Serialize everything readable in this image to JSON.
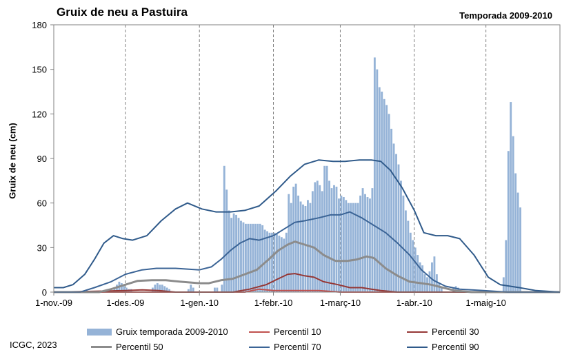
{
  "chart_data": {
    "type": "bar",
    "title": "Gruix de neu a Pastuira",
    "subtitle": "Temporada 2009-2010",
    "ylabel": "Gruix de neu (cm)",
    "ylim": [
      0,
      180
    ],
    "yticks": [
      0,
      30,
      60,
      90,
      120,
      150,
      180
    ],
    "xlim": [
      "2009-11-01",
      "2010-06-01"
    ],
    "xticks": [
      {
        "date": "2009-11-01",
        "label": "1-nov.-09"
      },
      {
        "date": "2009-12-01",
        "label": "1-des.-09"
      },
      {
        "date": "2010-01-01",
        "label": "1-gen.-10"
      },
      {
        "date": "2010-02-01",
        "label": "1-febr.-10"
      },
      {
        "date": "2010-03-01",
        "label": "1-març-10"
      },
      {
        "date": "2010-04-01",
        "label": "1-abr.-10"
      },
      {
        "date": "2010-05-01",
        "label": "1-maig-10"
      }
    ],
    "grid": "vertical-dashed",
    "legend_placement": "bottom",
    "colors": {
      "bars": "#95b3d7",
      "p10": "#c0504d",
      "p30": "#953735",
      "p50": "#8c8c8c",
      "p70": "#3b6496",
      "p90": "#2f5a8a"
    },
    "bars": {
      "name": "Gruix temporada 2009-2010",
      "points": [
        [
          "2009-11-26",
          3
        ],
        [
          "2009-11-27",
          5
        ],
        [
          "2009-11-28",
          7
        ],
        [
          "2009-11-29",
          6
        ],
        [
          "2009-11-30",
          4
        ],
        [
          "2009-12-01",
          3
        ],
        [
          "2009-12-02",
          2
        ],
        [
          "2009-12-03",
          2
        ],
        [
          "2009-12-12",
          3
        ],
        [
          "2009-12-13",
          5
        ],
        [
          "2009-12-14",
          6
        ],
        [
          "2009-12-15",
          5
        ],
        [
          "2009-12-16",
          5
        ],
        [
          "2009-12-17",
          4
        ],
        [
          "2009-12-18",
          3
        ],
        [
          "2009-12-19",
          2
        ],
        [
          "2009-12-27",
          2
        ],
        [
          "2009-12-28",
          5
        ],
        [
          "2009-12-29",
          3
        ],
        [
          "2010-01-07",
          3
        ],
        [
          "2010-01-08",
          3
        ],
        [
          "2010-01-10",
          5
        ],
        [
          "2010-01-11",
          85
        ],
        [
          "2010-01-12",
          69
        ],
        [
          "2010-01-13",
          55
        ],
        [
          "2010-01-14",
          50
        ],
        [
          "2010-01-15",
          53
        ],
        [
          "2010-01-16",
          52
        ],
        [
          "2010-01-17",
          50
        ],
        [
          "2010-01-18",
          48
        ],
        [
          "2010-01-19",
          47
        ],
        [
          "2010-01-20",
          46
        ],
        [
          "2010-01-21",
          46
        ],
        [
          "2010-01-22",
          46
        ],
        [
          "2010-01-23",
          46
        ],
        [
          "2010-01-24",
          46
        ],
        [
          "2010-01-25",
          46
        ],
        [
          "2010-01-26",
          46
        ],
        [
          "2010-01-27",
          45
        ],
        [
          "2010-01-28",
          42
        ],
        [
          "2010-01-29",
          41
        ],
        [
          "2010-01-30",
          40
        ],
        [
          "2010-01-31",
          40
        ],
        [
          "2010-02-01",
          40
        ],
        [
          "2010-02-02",
          39
        ],
        [
          "2010-02-03",
          38
        ],
        [
          "2010-02-04",
          37
        ],
        [
          "2010-02-05",
          36
        ],
        [
          "2010-02-06",
          40
        ],
        [
          "2010-02-07",
          66
        ],
        [
          "2010-02-08",
          60
        ],
        [
          "2010-02-09",
          71
        ],
        [
          "2010-02-10",
          73
        ],
        [
          "2010-02-11",
          65
        ],
        [
          "2010-02-12",
          61
        ],
        [
          "2010-02-13",
          59
        ],
        [
          "2010-02-14",
          58
        ],
        [
          "2010-02-15",
          62
        ],
        [
          "2010-02-16",
          60
        ],
        [
          "2010-02-17",
          68
        ],
        [
          "2010-02-18",
          74
        ],
        [
          "2010-02-19",
          75
        ],
        [
          "2010-02-20",
          72
        ],
        [
          "2010-02-21",
          68
        ],
        [
          "2010-02-22",
          85
        ],
        [
          "2010-02-23",
          85
        ],
        [
          "2010-02-24",
          75
        ],
        [
          "2010-02-25",
          70
        ],
        [
          "2010-02-26",
          72
        ],
        [
          "2010-02-27",
          71
        ],
        [
          "2010-02-28",
          63
        ],
        [
          "2010-03-01",
          65
        ],
        [
          "2010-03-02",
          64
        ],
        [
          "2010-03-03",
          62
        ],
        [
          "2010-03-04",
          60
        ],
        [
          "2010-03-05",
          60
        ],
        [
          "2010-03-06",
          60
        ],
        [
          "2010-03-07",
          60
        ],
        [
          "2010-03-08",
          60
        ],
        [
          "2010-03-09",
          65
        ],
        [
          "2010-03-10",
          70
        ],
        [
          "2010-03-11",
          66
        ],
        [
          "2010-03-12",
          64
        ],
        [
          "2010-03-13",
          63
        ],
        [
          "2010-03-14",
          70
        ],
        [
          "2010-03-15",
          158
        ],
        [
          "2010-03-16",
          150
        ],
        [
          "2010-03-17",
          138
        ],
        [
          "2010-03-18",
          135
        ],
        [
          "2010-03-19",
          130
        ],
        [
          "2010-03-20",
          126
        ],
        [
          "2010-03-21",
          120
        ],
        [
          "2010-03-22",
          110
        ],
        [
          "2010-03-23",
          100
        ],
        [
          "2010-03-24",
          93
        ],
        [
          "2010-03-25",
          86
        ],
        [
          "2010-03-26",
          75
        ],
        [
          "2010-03-27",
          65
        ],
        [
          "2010-03-28",
          55
        ],
        [
          "2010-03-29",
          48
        ],
        [
          "2010-03-30",
          40
        ],
        [
          "2010-03-31",
          35
        ],
        [
          "2010-04-01",
          30
        ],
        [
          "2010-04-02",
          25
        ],
        [
          "2010-04-03",
          20
        ],
        [
          "2010-04-04",
          18
        ],
        [
          "2010-04-05",
          12
        ],
        [
          "2010-04-06",
          10
        ],
        [
          "2010-04-07",
          14
        ],
        [
          "2010-04-08",
          20
        ],
        [
          "2010-04-09",
          24
        ],
        [
          "2010-04-10",
          12
        ],
        [
          "2010-04-11",
          6
        ],
        [
          "2010-04-12",
          3
        ],
        [
          "2010-04-17",
          3
        ],
        [
          "2010-04-18",
          4
        ],
        [
          "2010-04-19",
          3
        ],
        [
          "2010-05-08",
          10
        ],
        [
          "2010-05-09",
          35
        ],
        [
          "2010-05-10",
          95
        ],
        [
          "2010-05-11",
          128
        ],
        [
          "2010-05-12",
          105
        ],
        [
          "2010-05-13",
          80
        ],
        [
          "2010-05-14",
          67
        ],
        [
          "2010-05-15",
          57
        ]
      ]
    },
    "series": [
      {
        "name": "Percentil 10",
        "key": "p10",
        "width": 2,
        "points": [
          [
            "2009-11-01",
            0
          ],
          [
            "2009-12-01",
            0
          ],
          [
            "2010-01-01",
            0
          ],
          [
            "2010-01-20",
            0
          ],
          [
            "2010-01-26",
            2
          ],
          [
            "2010-02-01",
            1
          ],
          [
            "2010-02-10",
            1
          ],
          [
            "2010-02-20",
            1
          ],
          [
            "2010-03-01",
            0
          ],
          [
            "2010-06-01",
            0
          ]
        ]
      },
      {
        "name": "Percentil 30",
        "key": "p30",
        "width": 2,
        "points": [
          [
            "2009-11-01",
            0
          ],
          [
            "2009-12-01",
            1
          ],
          [
            "2009-12-08",
            1.5
          ],
          [
            "2009-12-15",
            1
          ],
          [
            "2009-12-22",
            0
          ],
          [
            "2010-01-01",
            0
          ],
          [
            "2010-01-15",
            0
          ],
          [
            "2010-01-22",
            2
          ],
          [
            "2010-01-29",
            5
          ],
          [
            "2010-02-03",
            9
          ],
          [
            "2010-02-07",
            12
          ],
          [
            "2010-02-10",
            12.5
          ],
          [
            "2010-02-14",
            11
          ],
          [
            "2010-02-18",
            10
          ],
          [
            "2010-02-22",
            7
          ],
          [
            "2010-02-28",
            5
          ],
          [
            "2010-03-05",
            3
          ],
          [
            "2010-03-10",
            3
          ],
          [
            "2010-03-14",
            2
          ],
          [
            "2010-03-18",
            1
          ],
          [
            "2010-03-25",
            0
          ],
          [
            "2010-06-01",
            0
          ]
        ]
      },
      {
        "name": "Percentil 50",
        "key": "p50",
        "width": 3,
        "points": [
          [
            "2009-11-01",
            0
          ],
          [
            "2009-11-20",
            0
          ],
          [
            "2009-11-25",
            2
          ],
          [
            "2009-12-01",
            5
          ],
          [
            "2009-12-06",
            7.5
          ],
          [
            "2009-12-12",
            8
          ],
          [
            "2009-12-18",
            8
          ],
          [
            "2009-12-24",
            7
          ],
          [
            "2010-01-01",
            6
          ],
          [
            "2010-01-05",
            6
          ],
          [
            "2010-01-10",
            8
          ],
          [
            "2010-01-15",
            9
          ],
          [
            "2010-01-20",
            12
          ],
          [
            "2010-01-25",
            15
          ],
          [
            "2010-01-30",
            22
          ],
          [
            "2010-02-03",
            28
          ],
          [
            "2010-02-07",
            32
          ],
          [
            "2010-02-10",
            34
          ],
          [
            "2010-02-14",
            32
          ],
          [
            "2010-02-18",
            30
          ],
          [
            "2010-02-22",
            25
          ],
          [
            "2010-02-27",
            21
          ],
          [
            "2010-03-04",
            21
          ],
          [
            "2010-03-08",
            22
          ],
          [
            "2010-03-12",
            24
          ],
          [
            "2010-03-15",
            23
          ],
          [
            "2010-03-20",
            16
          ],
          [
            "2010-03-25",
            11
          ],
          [
            "2010-03-30",
            7
          ],
          [
            "2010-04-04",
            6
          ],
          [
            "2010-04-08",
            5
          ],
          [
            "2010-04-13",
            3
          ],
          [
            "2010-04-18",
            1
          ],
          [
            "2010-04-25",
            0
          ],
          [
            "2010-06-01",
            0
          ]
        ]
      },
      {
        "name": "Percentil 70",
        "key": "p70",
        "width": 2,
        "points": [
          [
            "2009-11-01",
            0
          ],
          [
            "2009-11-12",
            0
          ],
          [
            "2009-11-18",
            3
          ],
          [
            "2009-11-25",
            7
          ],
          [
            "2009-12-01",
            12
          ],
          [
            "2009-12-08",
            15
          ],
          [
            "2009-12-14",
            16
          ],
          [
            "2009-12-22",
            16
          ],
          [
            "2010-01-01",
            15
          ],
          [
            "2010-01-06",
            17
          ],
          [
            "2010-01-10",
            22
          ],
          [
            "2010-01-14",
            28
          ],
          [
            "2010-01-18",
            33
          ],
          [
            "2010-01-22",
            36
          ],
          [
            "2010-01-26",
            35
          ],
          [
            "2010-02-01",
            38
          ],
          [
            "2010-02-06",
            43
          ],
          [
            "2010-02-10",
            47
          ],
          [
            "2010-02-14",
            48
          ],
          [
            "2010-02-20",
            50
          ],
          [
            "2010-02-25",
            52
          ],
          [
            "2010-03-01",
            52
          ],
          [
            "2010-03-05",
            54
          ],
          [
            "2010-03-10",
            50
          ],
          [
            "2010-03-15",
            45
          ],
          [
            "2010-03-20",
            40
          ],
          [
            "2010-03-25",
            33
          ],
          [
            "2010-03-30",
            25
          ],
          [
            "2010-04-04",
            15
          ],
          [
            "2010-04-09",
            8
          ],
          [
            "2010-04-14",
            4
          ],
          [
            "2010-04-20",
            2
          ],
          [
            "2010-04-30",
            1
          ],
          [
            "2010-05-10",
            0
          ],
          [
            "2010-06-01",
            0
          ]
        ]
      },
      {
        "name": "Percentil 90",
        "key": "p90",
        "width": 2,
        "points": [
          [
            "2009-11-01",
            3
          ],
          [
            "2009-11-05",
            3
          ],
          [
            "2009-11-09",
            5
          ],
          [
            "2009-11-14",
            12
          ],
          [
            "2009-11-18",
            22
          ],
          [
            "2009-11-22",
            33
          ],
          [
            "2009-11-26",
            38
          ],
          [
            "2009-11-30",
            36
          ],
          [
            "2009-12-04",
            35
          ],
          [
            "2009-12-10",
            38
          ],
          [
            "2009-12-16",
            48
          ],
          [
            "2009-12-22",
            56
          ],
          [
            "2009-12-27",
            60
          ],
          [
            "2010-01-02",
            56
          ],
          [
            "2010-01-08",
            54
          ],
          [
            "2010-01-14",
            54
          ],
          [
            "2010-01-20",
            55
          ],
          [
            "2010-01-26",
            58
          ],
          [
            "2010-02-02",
            68
          ],
          [
            "2010-02-08",
            78
          ],
          [
            "2010-02-14",
            86
          ],
          [
            "2010-02-20",
            89
          ],
          [
            "2010-02-26",
            88
          ],
          [
            "2010-03-03",
            88
          ],
          [
            "2010-03-09",
            89
          ],
          [
            "2010-03-14",
            89
          ],
          [
            "2010-03-18",
            88
          ],
          [
            "2010-03-22",
            82
          ],
          [
            "2010-03-27",
            70
          ],
          [
            "2010-04-01",
            55
          ],
          [
            "2010-04-05",
            40
          ],
          [
            "2010-04-10",
            38
          ],
          [
            "2010-04-15",
            38
          ],
          [
            "2010-04-20",
            36
          ],
          [
            "2010-04-26",
            25
          ],
          [
            "2010-05-02",
            10
          ],
          [
            "2010-05-07",
            5
          ],
          [
            "2010-05-15",
            3
          ],
          [
            "2010-05-22",
            1
          ],
          [
            "2010-06-01",
            0
          ]
        ]
      }
    ]
  },
  "credit": "ICGC, 2023"
}
